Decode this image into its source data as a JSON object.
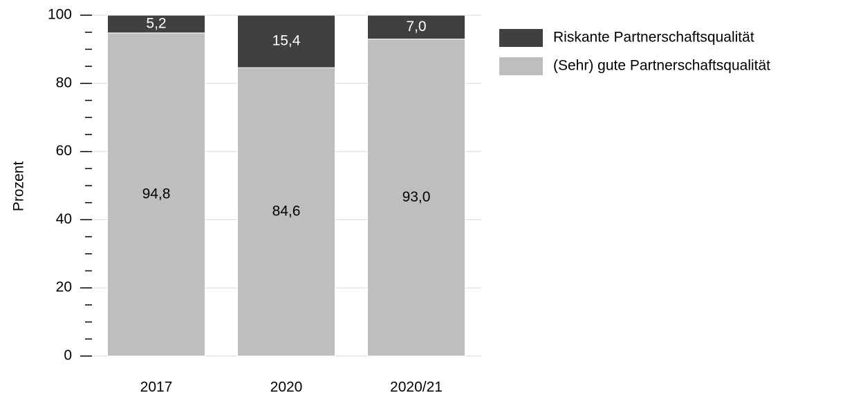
{
  "chart_data": {
    "type": "stacked_bar",
    "categories": [
      "2017",
      "2020",
      "2020/21"
    ],
    "series": [
      {
        "name": "(Sehr) gute Partnerschaftsqualität",
        "color": "#bebebe",
        "values": [
          94.8,
          84.6,
          93.0
        ],
        "value_labels": [
          "94,8",
          "84,6",
          "93,0"
        ],
        "label_color": "#000000"
      },
      {
        "name": "Riskante Partnerschaftsqualität",
        "color": "#404040",
        "values": [
          5.2,
          15.4,
          7.0
        ],
        "value_labels": [
          "5,2",
          "15,4",
          "7,0"
        ],
        "label_color": "#ffffff"
      }
    ],
    "ylabel": "Prozent",
    "ylim": [
      0,
      100
    ],
    "yticks": [
      0,
      20,
      40,
      60,
      80,
      100
    ],
    "yminorticks": [
      5,
      10,
      15,
      25,
      30,
      35,
      45,
      50,
      55,
      65,
      70,
      75,
      85,
      90,
      95
    ],
    "grid": true,
    "legend": "right"
  }
}
